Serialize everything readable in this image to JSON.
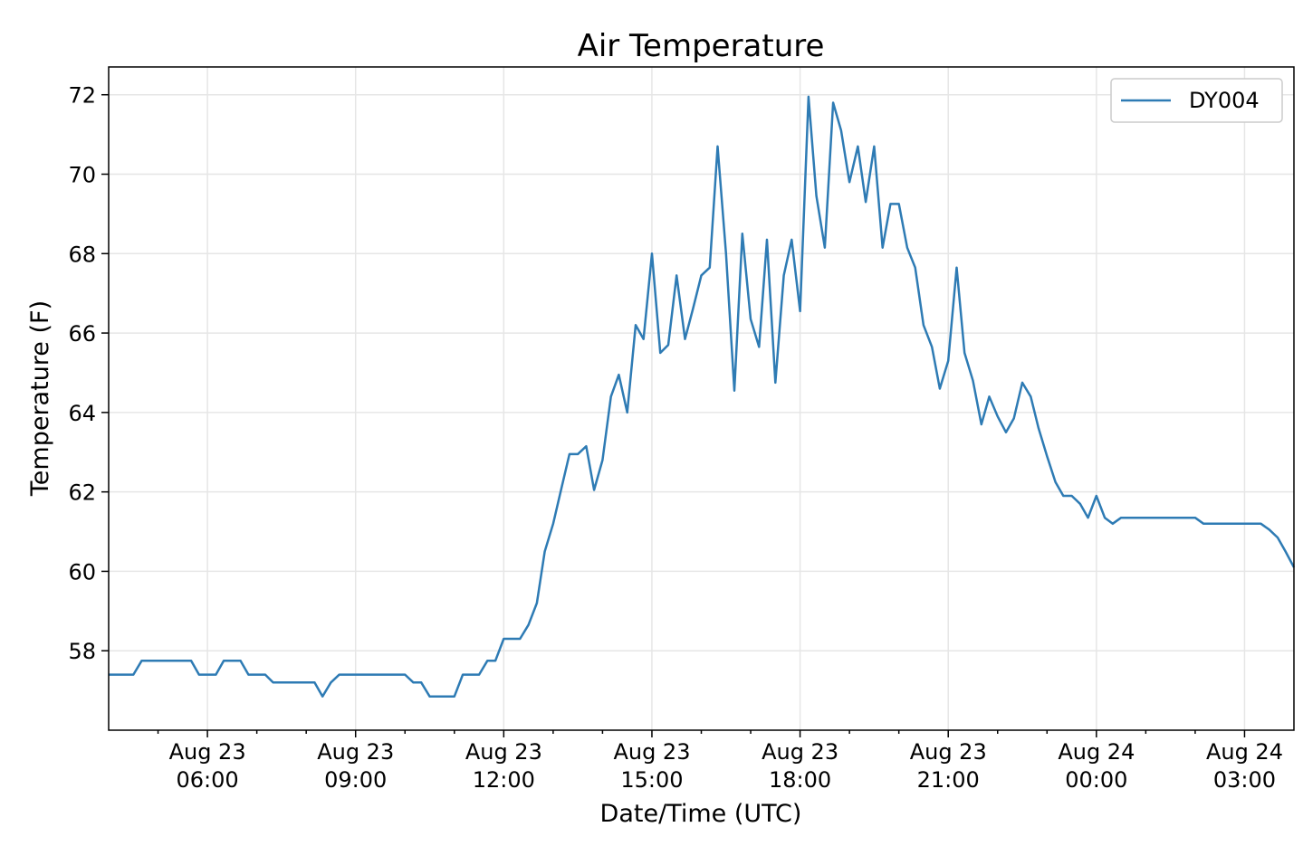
{
  "chart_data": {
    "type": "line",
    "title": "Air Temperature",
    "xlabel": "Date/Time (UTC)",
    "ylabel": "Temperature (F)",
    "x_start": "Aug 23 04:00",
    "x_end": "Aug 24 04:00",
    "ylim": [
      56.0,
      72.7
    ],
    "y_ticks": [
      58,
      60,
      62,
      64,
      66,
      68,
      70,
      72
    ],
    "x_ticks": [
      {
        "label_top": "Aug 23",
        "label_bottom": "06:00",
        "hours": 2
      },
      {
        "label_top": "Aug 23",
        "label_bottom": "09:00",
        "hours": 5
      },
      {
        "label_top": "Aug 23",
        "label_bottom": "12:00",
        "hours": 8
      },
      {
        "label_top": "Aug 23",
        "label_bottom": "15:00",
        "hours": 11
      },
      {
        "label_top": "Aug 23",
        "label_bottom": "18:00",
        "hours": 14
      },
      {
        "label_top": "Aug 23",
        "label_bottom": "21:00",
        "hours": 17
      },
      {
        "label_top": "Aug 24",
        "label_bottom": "00:00",
        "hours": 20
      },
      {
        "label_top": "Aug 24",
        "label_bottom": "03:00",
        "hours": 23
      }
    ],
    "grid": true,
    "legend_position": "top-right",
    "series": [
      {
        "name": "DY004",
        "color": "#2e7bb4",
        "points": [
          [
            0.0,
            57.4
          ],
          [
            0.5,
            57.4
          ],
          [
            0.67,
            57.75
          ],
          [
            1.0,
            57.75
          ],
          [
            1.5,
            57.75
          ],
          [
            1.67,
            57.75
          ],
          [
            1.83,
            57.4
          ],
          [
            2.17,
            57.4
          ],
          [
            2.33,
            57.75
          ],
          [
            2.67,
            57.75
          ],
          [
            2.83,
            57.4
          ],
          [
            3.17,
            57.4
          ],
          [
            3.33,
            57.2
          ],
          [
            3.67,
            57.2
          ],
          [
            4.17,
            57.2
          ],
          [
            4.33,
            56.85
          ],
          [
            4.5,
            57.2
          ],
          [
            4.67,
            57.4
          ],
          [
            5.0,
            57.4
          ],
          [
            5.5,
            57.4
          ],
          [
            6.0,
            57.4
          ],
          [
            6.17,
            57.2
          ],
          [
            6.33,
            57.2
          ],
          [
            6.5,
            56.85
          ],
          [
            6.83,
            56.85
          ],
          [
            7.0,
            56.85
          ],
          [
            7.17,
            57.4
          ],
          [
            7.5,
            57.4
          ],
          [
            7.67,
            57.75
          ],
          [
            7.83,
            57.75
          ],
          [
            8.0,
            58.3
          ],
          [
            8.33,
            58.3
          ],
          [
            8.5,
            58.65
          ],
          [
            8.67,
            59.2
          ],
          [
            8.83,
            60.5
          ],
          [
            9.0,
            61.2
          ],
          [
            9.17,
            62.1
          ],
          [
            9.33,
            62.95
          ],
          [
            9.5,
            62.95
          ],
          [
            9.67,
            63.15
          ],
          [
            9.83,
            62.05
          ],
          [
            10.0,
            62.8
          ],
          [
            10.17,
            64.4
          ],
          [
            10.33,
            64.95
          ],
          [
            10.5,
            64.0
          ],
          [
            10.67,
            66.2
          ],
          [
            10.83,
            65.85
          ],
          [
            11.0,
            68.0
          ],
          [
            11.17,
            65.5
          ],
          [
            11.33,
            65.7
          ],
          [
            11.5,
            67.45
          ],
          [
            11.67,
            65.85
          ],
          [
            11.83,
            66.6
          ],
          [
            12.0,
            67.45
          ],
          [
            12.17,
            67.65
          ],
          [
            12.33,
            70.7
          ],
          [
            12.5,
            68.0
          ],
          [
            12.67,
            64.55
          ],
          [
            12.83,
            68.5
          ],
          [
            13.0,
            66.35
          ],
          [
            13.17,
            65.65
          ],
          [
            13.33,
            68.35
          ],
          [
            13.5,
            64.75
          ],
          [
            13.67,
            67.45
          ],
          [
            13.83,
            68.35
          ],
          [
            14.0,
            66.55
          ],
          [
            14.17,
            71.95
          ],
          [
            14.33,
            69.45
          ],
          [
            14.5,
            68.15
          ],
          [
            14.67,
            71.8
          ],
          [
            14.83,
            71.1
          ],
          [
            15.0,
            69.8
          ],
          [
            15.17,
            70.7
          ],
          [
            15.33,
            69.3
          ],
          [
            15.5,
            70.7
          ],
          [
            15.67,
            68.15
          ],
          [
            15.83,
            69.25
          ],
          [
            16.0,
            69.25
          ],
          [
            16.17,
            68.15
          ],
          [
            16.33,
            67.65
          ],
          [
            16.5,
            66.2
          ],
          [
            16.67,
            65.65
          ],
          [
            16.83,
            64.6
          ],
          [
            17.0,
            65.3
          ],
          [
            17.17,
            67.65
          ],
          [
            17.33,
            65.5
          ],
          [
            17.5,
            64.8
          ],
          [
            17.67,
            63.7
          ],
          [
            17.83,
            64.4
          ],
          [
            18.0,
            63.9
          ],
          [
            18.17,
            63.5
          ],
          [
            18.33,
            63.85
          ],
          [
            18.5,
            64.75
          ],
          [
            18.67,
            64.4
          ],
          [
            18.83,
            63.6
          ],
          [
            19.0,
            62.9
          ],
          [
            19.17,
            62.25
          ],
          [
            19.33,
            61.9
          ],
          [
            19.5,
            61.9
          ],
          [
            19.67,
            61.7
          ],
          [
            19.83,
            61.35
          ],
          [
            20.0,
            61.9
          ],
          [
            20.17,
            61.35
          ],
          [
            20.33,
            61.2
          ],
          [
            20.5,
            61.35
          ],
          [
            21.0,
            61.35
          ],
          [
            21.5,
            61.35
          ],
          [
            22.0,
            61.35
          ],
          [
            22.17,
            61.2
          ],
          [
            22.5,
            61.2
          ],
          [
            23.0,
            61.2
          ],
          [
            23.33,
            61.2
          ],
          [
            23.5,
            61.05
          ],
          [
            23.67,
            60.85
          ],
          [
            23.83,
            60.5
          ],
          [
            24.0,
            60.1
          ]
        ]
      }
    ]
  }
}
